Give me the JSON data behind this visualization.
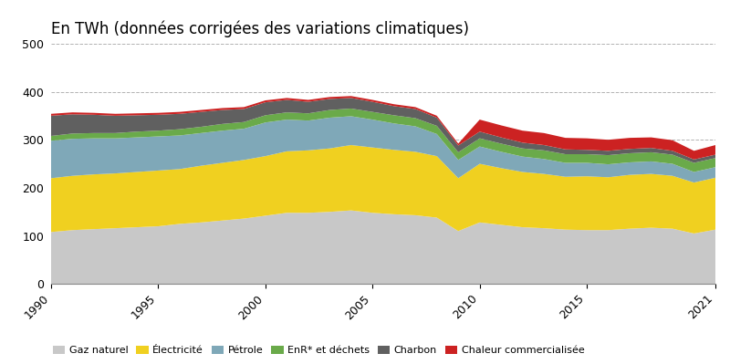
{
  "title": "En TWh (données corrigées des variations climatiques)",
  "years": [
    1990,
    1991,
    1992,
    1993,
    1994,
    1995,
    1996,
    1997,
    1998,
    1999,
    2000,
    2001,
    2002,
    2003,
    2004,
    2005,
    2006,
    2007,
    2008,
    2009,
    2010,
    2011,
    2012,
    2013,
    2014,
    2015,
    2016,
    2017,
    2018,
    2019,
    2020,
    2021
  ],
  "gaz_naturel": [
    108,
    112,
    114,
    116,
    118,
    120,
    125,
    128,
    132,
    136,
    142,
    148,
    148,
    150,
    153,
    148,
    145,
    143,
    138,
    110,
    128,
    123,
    118,
    116,
    113,
    112,
    112,
    115,
    117,
    115,
    105,
    113
  ],
  "electricite": [
    112,
    113,
    114,
    114,
    115,
    116,
    114,
    118,
    120,
    122,
    124,
    128,
    130,
    132,
    136,
    136,
    134,
    132,
    128,
    110,
    122,
    118,
    115,
    113,
    110,
    112,
    110,
    112,
    112,
    110,
    106,
    108
  ],
  "petrole": [
    78,
    77,
    75,
    73,
    72,
    71,
    70,
    68,
    67,
    65,
    70,
    66,
    62,
    64,
    60,
    58,
    55,
    53,
    46,
    38,
    36,
    34,
    32,
    31,
    29,
    28,
    27,
    26,
    26,
    25,
    22,
    22
  ],
  "enr_dechets": [
    10,
    11,
    11,
    11,
    12,
    12,
    13,
    13,
    14,
    14,
    15,
    15,
    15,
    16,
    16,
    16,
    17,
    17,
    17,
    16,
    17,
    17,
    17,
    18,
    18,
    18,
    19,
    19,
    19,
    19,
    19,
    19
  ],
  "charbon": [
    42,
    40,
    38,
    36,
    34,
    33,
    32,
    31,
    29,
    27,
    27,
    26,
    24,
    23,
    22,
    21,
    19,
    19,
    17,
    14,
    14,
    13,
    12,
    11,
    10,
    9,
    9,
    9,
    9,
    8,
    7,
    7
  ],
  "chaleur": [
    4,
    4,
    4,
    4,
    4,
    4,
    4,
    4,
    4,
    4,
    4,
    4,
    4,
    4,
    4,
    4,
    4,
    4,
    4,
    4,
    25,
    25,
    25,
    25,
    24,
    24,
    23,
    23,
    22,
    22,
    18,
    20
  ],
  "colors": {
    "gaz_naturel": "#c8c8c8",
    "electricite": "#f0d020",
    "petrole": "#7fa8b8",
    "enr_dechets": "#6aaa4a",
    "charbon": "#606060",
    "chaleur": "#cc2222"
  },
  "labels": {
    "gaz_naturel": "Gaz naturel",
    "electricite": "Électricité",
    "petrole": "Pétrole",
    "enr_dechets": "EnR* et déchets",
    "charbon": "Charbon",
    "chaleur": "Chaleur commercialisée"
  },
  "ylim": [
    0,
    500
  ],
  "yticks": [
    0,
    100,
    200,
    300,
    400,
    500
  ],
  "xticks": [
    1990,
    1995,
    2000,
    2005,
    2010,
    2015,
    2021
  ],
  "background_color": "#ffffff",
  "title_fontsize": 12
}
